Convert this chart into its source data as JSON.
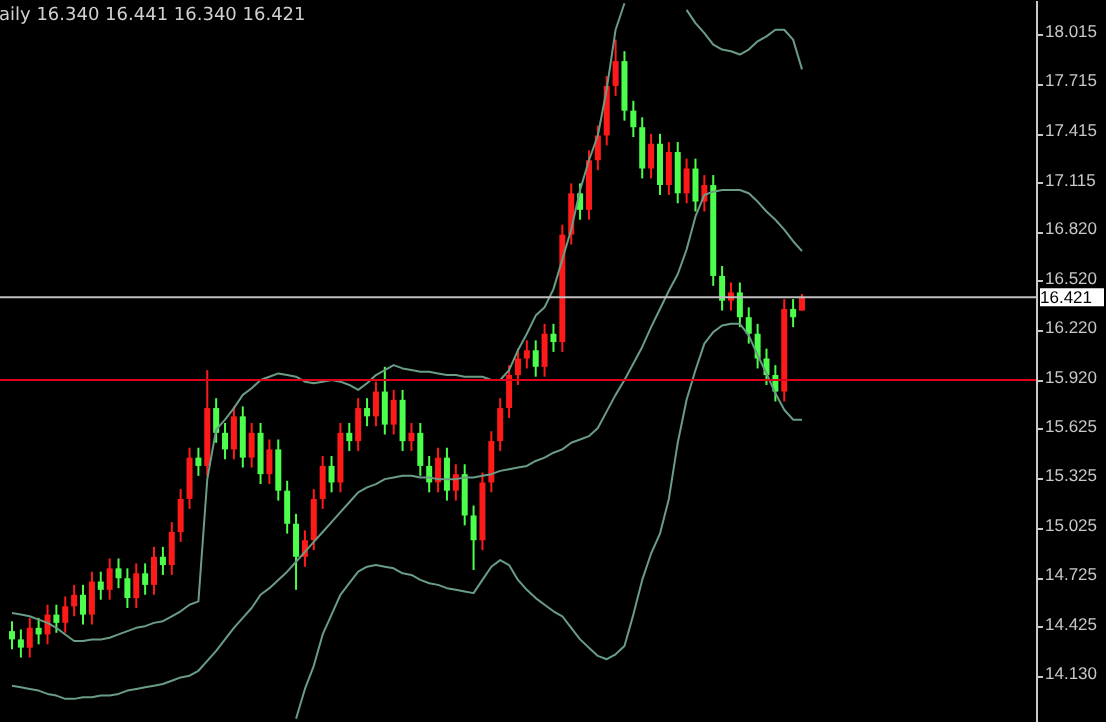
{
  "chart_data": {
    "type": "candlestick",
    "title": "aily 16.340 16.441 16.340 16.421",
    "categories": [
      null,
      null,
      null,
      null,
      null,
      null,
      null,
      null,
      null,
      null,
      null,
      null,
      null,
      null,
      null,
      null,
      null,
      null,
      null,
      null,
      null,
      null,
      null,
      null,
      null,
      null,
      null,
      null,
      null,
      null,
      null,
      null,
      null,
      null,
      null,
      null,
      null,
      null,
      null,
      null,
      null,
      null,
      null,
      null,
      null,
      null,
      null,
      null,
      null,
      null,
      null,
      null,
      null,
      null,
      null,
      null,
      null,
      null,
      null,
      null,
      null,
      null,
      null,
      null,
      null,
      null,
      null,
      null,
      null,
      null,
      null,
      null,
      null,
      null,
      null,
      null,
      null,
      null,
      null,
      null,
      null,
      null,
      null,
      null,
      null,
      null,
      null,
      null,
      null,
      null
    ],
    "series": [
      {
        "type": "candlestick",
        "ohlc": [
          [
            14.4,
            14.46,
            14.29,
            14.35
          ],
          [
            14.35,
            14.41,
            14.24,
            14.3
          ],
          [
            14.3,
            14.48,
            14.24,
            14.42
          ],
          [
            14.42,
            14.48,
            14.32,
            14.38
          ],
          [
            14.38,
            14.56,
            14.32,
            14.5
          ],
          [
            14.5,
            14.56,
            14.39,
            14.45
          ],
          [
            14.45,
            14.61,
            14.39,
            14.55
          ],
          [
            14.55,
            14.68,
            14.49,
            14.62
          ],
          [
            14.62,
            14.68,
            14.44,
            14.5
          ],
          [
            14.5,
            14.76,
            14.44,
            14.7
          ],
          [
            14.7,
            14.76,
            14.59,
            14.65
          ],
          [
            14.65,
            14.84,
            14.59,
            14.78
          ],
          [
            14.78,
            14.84,
            14.66,
            14.72
          ],
          [
            14.72,
            14.78,
            14.54,
            14.6
          ],
          [
            14.6,
            14.81,
            14.54,
            14.75
          ],
          [
            14.75,
            14.81,
            14.62,
            14.68
          ],
          [
            14.68,
            14.91,
            14.62,
            14.85
          ],
          [
            14.85,
            14.91,
            14.74,
            14.8
          ],
          [
            14.8,
            15.06,
            14.74,
            15.0
          ],
          [
            15.0,
            15.26,
            14.94,
            15.2
          ],
          [
            15.2,
            15.51,
            15.14,
            15.45
          ],
          [
            15.45,
            15.51,
            15.34,
            15.4
          ],
          [
            15.4,
            15.98,
            15.34,
            15.75
          ],
          [
            15.75,
            15.81,
            15.54,
            15.6
          ],
          [
            15.6,
            15.66,
            15.44,
            15.5
          ],
          [
            15.5,
            15.76,
            15.44,
            15.7
          ],
          [
            15.7,
            15.76,
            15.39,
            15.45
          ],
          [
            15.45,
            15.66,
            15.39,
            15.6
          ],
          [
            15.6,
            15.66,
            15.29,
            15.35
          ],
          [
            15.35,
            15.56,
            15.29,
            15.5
          ],
          [
            15.5,
            15.56,
            15.19,
            15.25
          ],
          [
            15.25,
            15.31,
            14.99,
            15.05
          ],
          [
            15.05,
            15.11,
            14.65,
            14.85
          ],
          [
            14.85,
            15.01,
            14.79,
            14.95
          ],
          [
            14.95,
            15.26,
            14.89,
            15.2
          ],
          [
            15.2,
            15.46,
            15.14,
            15.4
          ],
          [
            15.4,
            15.46,
            15.24,
            15.3
          ],
          [
            15.3,
            15.66,
            15.24,
            15.6
          ],
          [
            15.6,
            15.66,
            15.49,
            15.55
          ],
          [
            15.55,
            15.81,
            15.49,
            15.75
          ],
          [
            15.75,
            15.81,
            15.64,
            15.7
          ],
          [
            15.7,
            15.91,
            15.64,
            15.85
          ],
          [
            15.85,
            16.0,
            15.59,
            15.65
          ],
          [
            15.65,
            15.86,
            15.59,
            15.8
          ],
          [
            15.8,
            15.86,
            15.49,
            15.55
          ],
          [
            15.55,
            15.66,
            15.49,
            15.6
          ],
          [
            15.6,
            15.66,
            15.34,
            15.4
          ],
          [
            15.4,
            15.46,
            15.24,
            15.3
          ],
          [
            15.3,
            15.51,
            15.24,
            15.45
          ],
          [
            15.45,
            15.51,
            15.19,
            15.25
          ],
          [
            15.25,
            15.41,
            15.19,
            15.35
          ],
          [
            15.35,
            15.41,
            15.04,
            15.1
          ],
          [
            15.1,
            15.16,
            14.77,
            14.95
          ],
          [
            14.95,
            15.36,
            14.89,
            15.3
          ],
          [
            15.3,
            15.61,
            15.24,
            15.55
          ],
          [
            15.55,
            15.81,
            15.49,
            15.75
          ],
          [
            15.75,
            16.01,
            15.69,
            15.95
          ],
          [
            15.95,
            16.11,
            15.89,
            16.05
          ],
          [
            16.05,
            16.16,
            15.99,
            16.1
          ],
          [
            16.1,
            16.16,
            15.94,
            16.0
          ],
          [
            16.0,
            16.26,
            15.94,
            16.2
          ],
          [
            16.2,
            16.26,
            16.09,
            16.15
          ],
          [
            16.15,
            16.86,
            16.09,
            16.8
          ],
          [
            16.8,
            17.11,
            16.74,
            17.05
          ],
          [
            17.05,
            17.11,
            16.89,
            16.95
          ],
          [
            16.95,
            17.31,
            16.89,
            17.25
          ],
          [
            17.25,
            17.46,
            17.19,
            17.4
          ],
          [
            17.4,
            17.76,
            17.34,
            17.7
          ],
          [
            17.7,
            17.98,
            17.64,
            17.85
          ],
          [
            17.85,
            17.91,
            17.49,
            17.55
          ],
          [
            17.55,
            17.61,
            17.39,
            17.45
          ],
          [
            17.45,
            17.51,
            17.14,
            17.2
          ],
          [
            17.2,
            17.41,
            17.14,
            17.35
          ],
          [
            17.35,
            17.41,
            17.04,
            17.1
          ],
          [
            17.1,
            17.36,
            17.04,
            17.3
          ],
          [
            17.3,
            17.36,
            16.99,
            17.05
          ],
          [
            17.05,
            17.26,
            16.99,
            17.2
          ],
          [
            17.2,
            17.26,
            16.94,
            17.0
          ],
          [
            17.0,
            17.16,
            16.94,
            17.1
          ],
          [
            17.1,
            17.16,
            16.49,
            16.55
          ],
          [
            16.55,
            16.61,
            16.34,
            16.4
          ],
          [
            16.4,
            16.51,
            16.34,
            16.45
          ],
          [
            16.45,
            16.51,
            16.24,
            16.3
          ],
          [
            16.3,
            16.36,
            16.14,
            16.2
          ],
          [
            16.2,
            16.26,
            15.99,
            16.05
          ],
          [
            16.05,
            16.11,
            15.89,
            15.95
          ],
          [
            15.95,
            16.01,
            15.79,
            15.85
          ],
          [
            15.85,
            16.41,
            15.79,
            16.35
          ],
          [
            16.35,
            16.41,
            16.24,
            16.3
          ],
          [
            16.34,
            16.441,
            16.34,
            16.421
          ]
        ],
        "colors": [
          "#4cff4c",
          "#4cff4c",
          "#ff1a1a",
          "#4cff4c",
          "#ff1a1a",
          "#4cff4c",
          "#ff1a1a",
          "#ff1a1a",
          "#4cff4c",
          "#ff1a1a",
          "#4cff4c",
          "#ff1a1a",
          "#4cff4c",
          "#4cff4c",
          "#ff1a1a",
          "#4cff4c",
          "#ff1a1a",
          "#4cff4c",
          "#ff1a1a",
          "#ff1a1a",
          "#ff1a1a",
          "#4cff4c",
          "#ff1a1a",
          "#4cff4c",
          "#4cff4c",
          "#ff1a1a",
          "#4cff4c",
          "#ff1a1a",
          "#4cff4c",
          "#ff1a1a",
          "#4cff4c",
          "#4cff4c",
          "#4cff4c",
          "#ff1a1a",
          "#ff1a1a",
          "#ff1a1a",
          "#4cff4c",
          "#ff1a1a",
          "#4cff4c",
          "#ff1a1a",
          "#4cff4c",
          "#ff1a1a",
          "#4cff4c",
          "#ff1a1a",
          "#4cff4c",
          "#ff1a1a",
          "#4cff4c",
          "#4cff4c",
          "#ff1a1a",
          "#4cff4c",
          "#ff1a1a",
          "#4cff4c",
          "#4cff4c",
          "#ff1a1a",
          "#ff1a1a",
          "#ff1a1a",
          "#ff1a1a",
          "#ff1a1a",
          "#ff1a1a",
          "#4cff4c",
          "#ff1a1a",
          "#4cff4c",
          "#ff1a1a",
          "#ff1a1a",
          "#4cff4c",
          "#ff1a1a",
          "#ff1a1a",
          "#ff1a1a",
          "#ff1a1a",
          "#4cff4c",
          "#4cff4c",
          "#4cff4c",
          "#ff1a1a",
          "#4cff4c",
          "#ff1a1a",
          "#4cff4c",
          "#ff1a1a",
          "#4cff4c",
          "#ff1a1a",
          "#4cff4c",
          "#4cff4c",
          "#ff1a1a",
          "#4cff4c",
          "#4cff4c",
          "#4cff4c",
          "#4cff4c",
          "#4cff4c",
          "#ff1a1a",
          "#4cff4c",
          "#ff1a1a"
        ]
      },
      {
        "type": "line",
        "color": "#6a9c86",
        "values": [
          14.51,
          14.5,
          14.49,
          14.47,
          14.45,
          14.42,
          14.38,
          14.34,
          14.34,
          14.35,
          14.35,
          14.36,
          14.38,
          14.4,
          14.42,
          14.43,
          14.45,
          14.46,
          14.49,
          14.52,
          14.56,
          14.58,
          15.32,
          15.62,
          15.68,
          15.75,
          15.83,
          15.87,
          15.92,
          15.94,
          15.96,
          15.95,
          15.94,
          15.91,
          15.9,
          15.91,
          15.92,
          15.91,
          15.89,
          15.86,
          15.9,
          15.95,
          15.98,
          16.01,
          15.99,
          15.98,
          15.97,
          15.97,
          15.96,
          15.95,
          15.95,
          15.94,
          15.94,
          15.94,
          15.92,
          15.92,
          15.98,
          16.1,
          16.2,
          16.31,
          16.36,
          16.47,
          16.65,
          16.83,
          17.07,
          17.25,
          17.4,
          17.68,
          18.04,
          18.2,
          null,
          null,
          null,
          null,
          null,
          null,
          18.16,
          18.08,
          18.02,
          17.95,
          17.92,
          17.91,
          17.89,
          17.92,
          17.97,
          18.0,
          18.04,
          18.04,
          17.98,
          17.8
        ]
      },
      {
        "type": "line",
        "color": "#6a9c86",
        "values": [
          14.07,
          14.06,
          14.05,
          14.04,
          14.02,
          14.01,
          13.99,
          13.99,
          14.0,
          14.0,
          14.01,
          14.01,
          14.02,
          14.04,
          14.05,
          14.06,
          14.07,
          14.08,
          14.1,
          14.12,
          14.13,
          14.16,
          14.22,
          14.28,
          14.35,
          14.42,
          14.48,
          14.54,
          14.62,
          14.66,
          14.71,
          14.76,
          14.82,
          14.88,
          14.94,
          15.0,
          15.06,
          15.12,
          15.18,
          15.24,
          15.27,
          15.29,
          15.32,
          15.33,
          15.34,
          15.34,
          15.33,
          15.33,
          15.32,
          15.32,
          15.32,
          15.33,
          15.33,
          15.34,
          15.35,
          15.37,
          15.38,
          15.39,
          15.4,
          15.43,
          15.45,
          15.48,
          15.5,
          15.54,
          15.56,
          15.58,
          15.63,
          15.73,
          15.83,
          15.92,
          16.02,
          16.12,
          16.24,
          16.35,
          16.46,
          16.56,
          16.71,
          16.91,
          17.04,
          17.06,
          17.07,
          17.07,
          17.07,
          17.05,
          17.0,
          16.94,
          16.89,
          16.83,
          16.76,
          16.7
        ]
      },
      {
        "type": "line",
        "color": "#6a9c86",
        "values": [
          null,
          null,
          null,
          null,
          null,
          null,
          null,
          null,
          null,
          null,
          null,
          null,
          null,
          null,
          null,
          null,
          null,
          null,
          null,
          null,
          null,
          null,
          null,
          null,
          null,
          null,
          null,
          null,
          null,
          null,
          null,
          null,
          13.87,
          14.05,
          14.19,
          14.38,
          14.5,
          14.62,
          14.69,
          14.76,
          14.79,
          14.8,
          14.79,
          14.78,
          14.75,
          14.74,
          14.71,
          14.69,
          14.68,
          14.66,
          14.65,
          14.64,
          14.63,
          14.71,
          14.79,
          14.83,
          14.8,
          14.71,
          14.65,
          14.6,
          14.56,
          14.52,
          14.49,
          14.42,
          14.35,
          14.3,
          14.25,
          14.23,
          14.26,
          14.31,
          14.5,
          14.71,
          14.87,
          14.99,
          15.2,
          15.54,
          15.8,
          15.98,
          16.14,
          16.21,
          16.25,
          16.26,
          16.26,
          16.19,
          16.07,
          15.96,
          15.84,
          15.74,
          15.68,
          15.68
        ]
      }
    ],
    "ylim": [
      13.85,
      18.22
    ],
    "yticks": [
      18.015,
      17.715,
      17.415,
      17.115,
      {
        "value": 16.82,
        "label": "16.820"
      },
      {
        "value": 16.52,
        "label": "16.520"
      },
      {
        "value": 16.22,
        "label": "16.220"
      },
      {
        "value": 15.92,
        "label": "15.920"
      },
      15.625,
      15.325,
      15.025,
      14.725,
      14.425,
      {
        "value": 14.13,
        "label": "14.130"
      }
    ],
    "tick_labels": "y",
    "ref_lines": [
      {
        "axis": "y",
        "value": 16.421,
        "label": "16.421",
        "color": "#c0c0c0"
      },
      {
        "axis": "y",
        "value": 15.92,
        "color": "#e0001a"
      }
    ]
  }
}
